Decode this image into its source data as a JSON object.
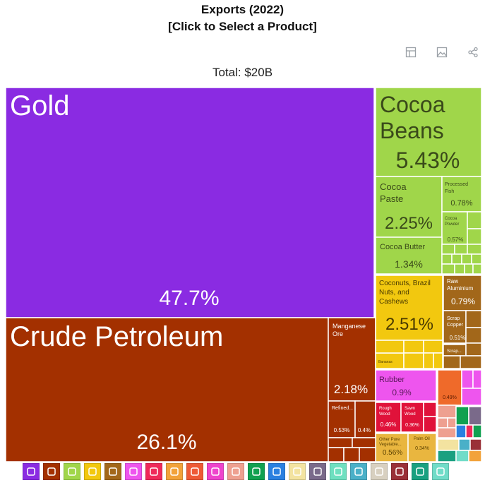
{
  "header": {
    "title_line1": "Exports (2022)",
    "title_line2": "[Click to Select a Product]",
    "total": "Total: $20B"
  },
  "toolbar": [
    "table-icon",
    "image-icon",
    "share-icon"
  ],
  "chart_data": {
    "type": "treemap",
    "title": "Exports (2022)",
    "total": "Total: $20B",
    "cells": [
      {
        "label": "Gold",
        "value": 47.7,
        "pct": "47.7%",
        "color": "#8a2be2"
      },
      {
        "label": "Crude Petroleum",
        "value": 26.1,
        "pct": "26.1%",
        "color": "#a33000"
      },
      {
        "label": "Manganese Ore",
        "value": 2.18,
        "pct": "2.18%",
        "color": "#a33000"
      },
      {
        "label": "Refined...",
        "value": 0.53,
        "pct": "0.53%",
        "color": "#a33000"
      },
      {
        "label": "",
        "value": 0.4,
        "pct": "0.4%",
        "color": "#a33000"
      },
      {
        "label": "Cocoa Beans",
        "value": 5.43,
        "pct": "5.43%",
        "color": "#a0d64a"
      },
      {
        "label": "Cocoa Paste",
        "value": 2.25,
        "pct": "2.25%",
        "color": "#a0d64a"
      },
      {
        "label": "Processed Fish",
        "value": 0.78,
        "pct": "0.78%",
        "color": "#a0d64a"
      },
      {
        "label": "Cocoa Powder",
        "value": 0.57,
        "pct": "0.57%",
        "color": "#a0d64a"
      },
      {
        "label": "Cocoa Butter",
        "value": 1.34,
        "pct": "1.34%",
        "color": "#a0d64a"
      },
      {
        "label": "Coconuts, Brazil Nuts, and Cashews",
        "value": 2.51,
        "pct": "2.51%",
        "color": "#f2c80f"
      },
      {
        "label": "Bananas",
        "value": null,
        "pct": "",
        "color": "#f2c80f"
      },
      {
        "label": "Raw Aluminium",
        "value": 0.79,
        "pct": "0.79%",
        "color": "#a2671a"
      },
      {
        "label": "Scrap Copper",
        "value": 0.51,
        "pct": "0.51%",
        "color": "#a2671a"
      },
      {
        "label": "Scrap...",
        "value": null,
        "pct": "",
        "color": "#a2671a"
      },
      {
        "label": "Rubber",
        "value": 0.9,
        "pct": "0.9%",
        "color": "#ee55ee"
      },
      {
        "label": "",
        "value": 0.49,
        "pct": "0.49%",
        "color": "#ef6a2a"
      },
      {
        "label": "Rough Wood",
        "value": 0.46,
        "pct": "0.46%",
        "color": "#e0123a"
      },
      {
        "label": "Sawn Wood",
        "value": 0.36,
        "pct": "0.36%",
        "color": "#e0123a"
      },
      {
        "label": "Other Pure Vegetable...",
        "value": 0.56,
        "pct": "0.56%",
        "color": "#e9b63f"
      },
      {
        "label": "Palm Oil",
        "value": 0.34,
        "pct": "0.34%",
        "color": "#e9b63f"
      }
    ]
  },
  "legend": [
    {
      "name": "precious-metals-icon",
      "color": "#8a2be2"
    },
    {
      "name": "minerals-icon",
      "color": "#a33000"
    },
    {
      "name": "vegetable-products-icon",
      "color": "#a0d64a"
    },
    {
      "name": "foodstuffs-icon",
      "color": "#f2c80f"
    },
    {
      "name": "metals-icon",
      "color": "#a2671a"
    },
    {
      "name": "plastics-rubbers-icon",
      "color": "#ee55ee"
    },
    {
      "name": "paper-goods-icon",
      "color": "#ef2a5a"
    },
    {
      "name": "animal-vegetable-oils-icon",
      "color": "#f2a23a"
    },
    {
      "name": "wood-products-icon",
      "color": "#ee5a36"
    },
    {
      "name": "chemical-products-icon",
      "color": "#ee44cc"
    },
    {
      "name": "animal-hides-icon",
      "color": "#eea090"
    },
    {
      "name": "textiles-icon",
      "color": "#10a050"
    },
    {
      "name": "machines-icon",
      "color": "#2a80e0"
    },
    {
      "name": "instruments-icon",
      "color": "#f3e3a0"
    },
    {
      "name": "arts-antiques-icon",
      "color": "#7a6a8a"
    },
    {
      "name": "animal-products-icon",
      "color": "#6ee0c0"
    },
    {
      "name": "transportation-icon",
      "color": "#4ab0c8"
    },
    {
      "name": "stone-glass-icon",
      "color": "#d8d0c0"
    },
    {
      "name": "weapons-icon",
      "color": "#9a3038"
    },
    {
      "name": "footwear-headwear-icon",
      "color": "#1aa080"
    },
    {
      "name": "miscellaneous-icon",
      "color": "#70dcc8"
    }
  ]
}
